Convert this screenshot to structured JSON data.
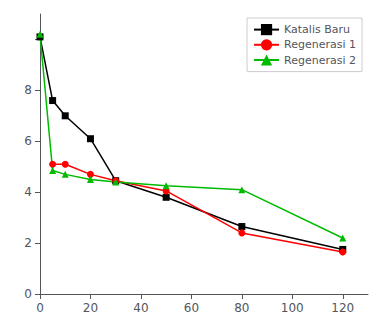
{
  "chart_data": {
    "type": "line",
    "series": [
      {
        "name": "Katalis Baru",
        "color": "#000000",
        "marker": "square",
        "x": [
          0,
          5,
          10,
          20,
          30,
          50,
          80,
          120
        ],
        "values": [
          10.1,
          7.6,
          7.0,
          6.1,
          4.45,
          3.8,
          2.65,
          1.75
        ]
      },
      {
        "name": "Regenerasi 1",
        "color": "#ff0000",
        "marker": "circle",
        "x": [
          5,
          10,
          20,
          30,
          50,
          80,
          120
        ],
        "values": [
          5.1,
          5.1,
          4.7,
          4.45,
          4.05,
          2.4,
          1.65
        ]
      },
      {
        "name": "Regenerasi 2",
        "color": "#00bb00",
        "marker": "triangle",
        "x": [
          0,
          5,
          10,
          20,
          30,
          50,
          80,
          120
        ],
        "values": [
          10.2,
          4.85,
          4.7,
          4.5,
          4.4,
          4.25,
          4.1,
          2.2
        ]
      }
    ],
    "xlim": [
      0,
      130
    ],
    "ylim": [
      0,
      11
    ],
    "xticks": [
      0,
      20,
      40,
      60,
      80,
      100,
      120
    ],
    "yticks": [
      0,
      2,
      4,
      6,
      8,
      {
        "value": 10,
        "label": ""
      }
    ],
    "grid": false,
    "legend": "upper right"
  }
}
